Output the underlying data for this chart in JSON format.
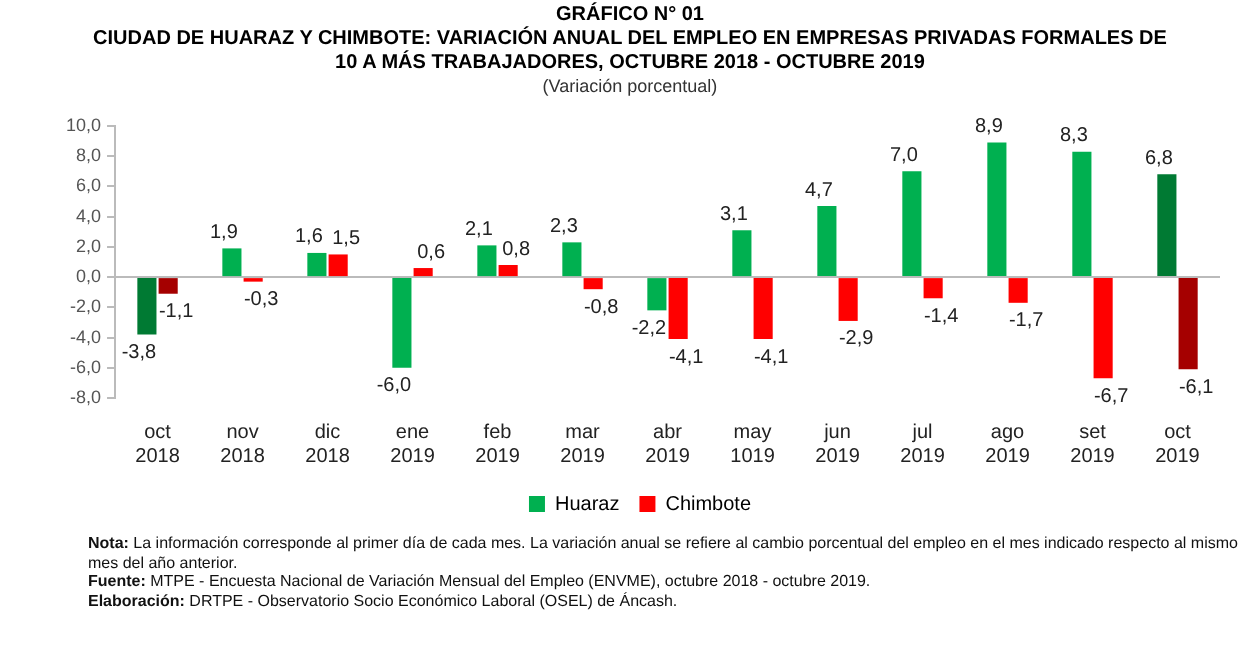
{
  "chart_data": {
    "type": "bar",
    "title": "GRÁFICO N° 01",
    "subtitle": "CIUDAD DE HUARAZ Y CHIMBOTE: VARIACIÓN ANUAL DEL EMPLEO EN EMPRESAS PRIVADAS FORMALES DE 10 A MÁS TRABAJADORES, OCTUBRE 2018 - OCTUBRE 2019",
    "categories": [
      "oct 2018",
      "nov 2018",
      "dic 2018",
      "ene 2019",
      "feb 2019",
      "mar 2019",
      "abr 2019",
      "may 1019",
      "jun 2019",
      "jul 2019",
      "ago 2019",
      "set 2019",
      "oct 2019"
    ],
    "series": [
      {
        "name": "Huaraz",
        "color": "#00b050",
        "colors": [
          "#007a33",
          "#00b050",
          "#00b050",
          "#00b050",
          "#00b050",
          "#00b050",
          "#00b050",
          "#00b050",
          "#00b050",
          "#00b050",
          "#00b050",
          "#00b050",
          "#007a33"
        ],
        "values": [
          -3.8,
          1.9,
          1.6,
          -6.0,
          2.1,
          2.3,
          -2.2,
          3.1,
          4.7,
          7.0,
          8.9,
          8.3,
          6.8
        ],
        "value_labels": [
          "-3,8",
          "1,9",
          "1,6",
          "-6,0",
          "2,1",
          "2,3",
          "-2,2",
          "3,1",
          "4,7",
          "7,0",
          "8,9",
          "8,3",
          "6,8"
        ]
      },
      {
        "name": "Chimbote",
        "color": "#ff0000",
        "colors": [
          "#a50000",
          "#ff0000",
          "#ff0000",
          "#ff0000",
          "#ff0000",
          "#ff0000",
          "#ff0000",
          "#ff0000",
          "#ff0000",
          "#ff0000",
          "#ff0000",
          "#ff0000",
          "#a50000"
        ],
        "values": [
          -1.1,
          -0.3,
          1.5,
          0.6,
          0.8,
          -0.8,
          -4.1,
          -4.1,
          -2.9,
          -1.4,
          -1.7,
          -6.7,
          -6.1
        ],
        "value_labels": [
          "-1,1",
          "-0,3",
          "1,5",
          "0,6",
          "0,8",
          "-0,8",
          "-4,1",
          "-4,1",
          "-2,9",
          "-1,4",
          "-1,7",
          "-6,7",
          "-6,1"
        ]
      }
    ],
    "ylim": [
      -8,
      10
    ],
    "yticks": [
      {
        "value": -8,
        "label": "-8,0"
      },
      {
        "value": -6,
        "label": "-6,0"
      },
      {
        "value": -4,
        "label": "-4,0"
      },
      {
        "value": -2,
        "label": "-2,0"
      },
      {
        "value": 0,
        "label": "0,0"
      },
      {
        "value": 2,
        "label": "2,0"
      },
      {
        "value": 4,
        "label": "4,0"
      },
      {
        "value": 6,
        "label": "6,0"
      },
      {
        "value": 8,
        "label": "8,0"
      },
      {
        "value": 10,
        "label": "10,0"
      }
    ],
    "legend": "bottom",
    "annotations": [
      "(Variación porcentual)",
      "Nota: La información corresponde al primer día de cada mes. La variación anual se refiere al cambio porcentual del empleo en el mes indicado respecto al mismo mes del año anterior.",
      "Fuente: MTPE - Encuesta Nacional de Variación Mensual del Empleo (ENVME), octubre 2018 - octubre 2019.",
      "Elaboración: DRTPE - Observatorio Socio Económico Laboral (OSEL) de Áncash."
    ]
  }
}
